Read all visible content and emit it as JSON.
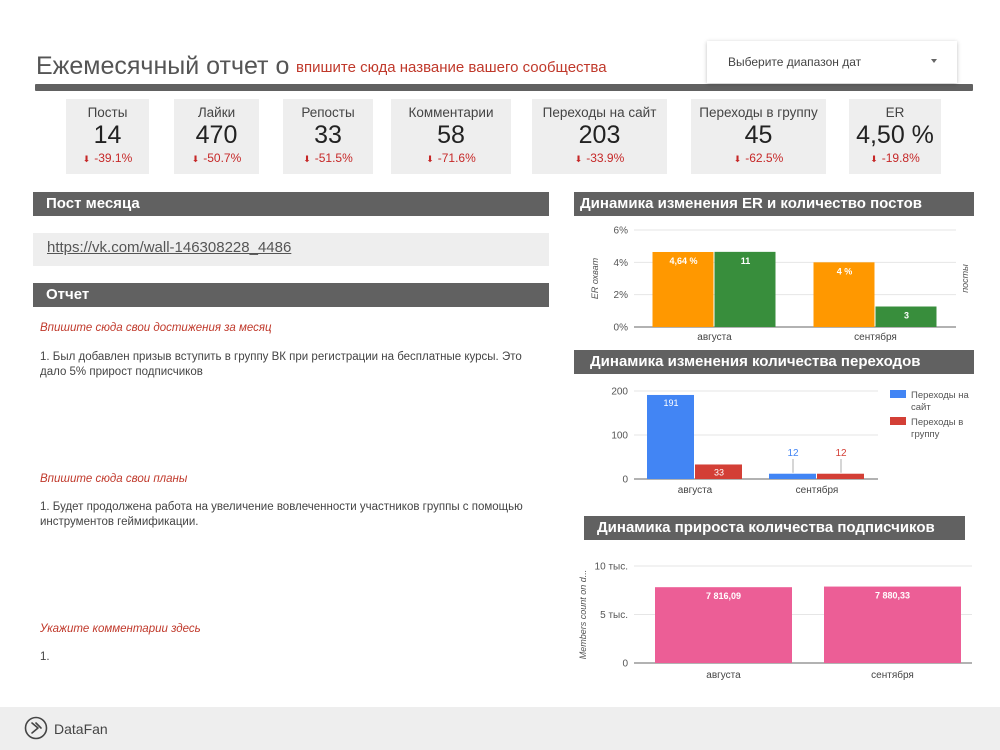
{
  "header": {
    "title": "Ежемесячный отчет о",
    "subtitle": "впишите сюда название вашего сообщества",
    "date_picker": "Выберите диапазон дат"
  },
  "kpis": [
    {
      "label": "Посты",
      "value": "14",
      "delta": "-39.1%"
    },
    {
      "label": "Лайки",
      "value": "470",
      "delta": "-50.7%"
    },
    {
      "label": "Репосты",
      "value": "33",
      "delta": "-51.5%"
    },
    {
      "label": "Комментарии",
      "value": "58",
      "delta": "-71.6%"
    },
    {
      "label": "Переходы на сайт",
      "value": "203",
      "delta": "-33.9%"
    },
    {
      "label": "Переходы в группу",
      "value": "45",
      "delta": "-62.5%"
    },
    {
      "label": "ER",
      "value": "4,50 %",
      "delta": "-19.8%"
    }
  ],
  "post_of_month": {
    "title": "Пост месяца",
    "link": "https://vk.com/wall-146308228_4486"
  },
  "report": {
    "title": "Отчет",
    "achievements_title": "Впишите сюда свои достижения за месяц",
    "achievements_text": "1. Был добавлен призыв вступить в группу ВК при регистрации на бесплатные курсы. Это дало 5% прирост подписчиков",
    "plans_title": "Впишите сюда свои планы",
    "plans_text": "1. Будет продолжена работа на увеличение вовлеченности участников группы с помощью инструментов геймификации.",
    "comments_title": "Укажите комментарии здесь",
    "comments_text": "1."
  },
  "footer": {
    "brand": "DataFan"
  },
  "colors": {
    "orange": "#ff9800",
    "green": "#388e3c",
    "blue": "#4285f4",
    "red": "#d33f36",
    "pink": "#ec5e96",
    "header_gray": "#616161",
    "delta_red": "#c62828"
  },
  "chart_data": [
    {
      "type": "bar",
      "title": "Динамика изменения ER и количество постов",
      "categories": [
        "августа",
        "сентября"
      ],
      "ylabel": "ER охват",
      "y2label": "посты",
      "ylim": [
        0,
        6
      ],
      "yticks": [
        "0%",
        "2%",
        "4%",
        "6%"
      ],
      "series": [
        {
          "values": [
            4.64,
            4.0
          ],
          "labels": [
            "4,64 %",
            "4 %"
          ],
          "color": "#ff9800",
          "axis": "left"
        },
        {
          "values": [
            11,
            3
          ],
          "labels": [
            "11",
            "3"
          ],
          "color": "#388e3c",
          "axis": "right",
          "ylim": [
            0,
            14.2
          ]
        }
      ],
      "legend": "none",
      "grid": true
    },
    {
      "type": "bar",
      "title": "Динамика изменения количества переходов",
      "categories": [
        "августа",
        "сентября"
      ],
      "ylim": [
        0,
        200
      ],
      "yticks": [
        "0",
        "100",
        "200"
      ],
      "series": [
        {
          "name": "Переходы на сайт",
          "values": [
            191,
            12
          ],
          "labels": [
            "191",
            "12"
          ],
          "color": "#4285f4"
        },
        {
          "name": "Переходы в группу",
          "values": [
            33,
            12
          ],
          "labels": [
            "33",
            "12"
          ],
          "color": "#d33f36"
        }
      ],
      "legend": "right",
      "grid": true
    },
    {
      "type": "bar",
      "title": "Динамика прироста количества подписчиков",
      "categories": [
        "августа",
        "сентября"
      ],
      "ylabel": "Members count on d...",
      "ylim": [
        0,
        10000
      ],
      "yticks": [
        "0",
        "5 тыс.",
        "10 тыс."
      ],
      "series": [
        {
          "values": [
            7816.09,
            7880.33
          ],
          "labels": [
            "7 816,09",
            "7 880,33"
          ],
          "color": "#ec5e96"
        }
      ],
      "legend": "none",
      "grid": true
    }
  ]
}
